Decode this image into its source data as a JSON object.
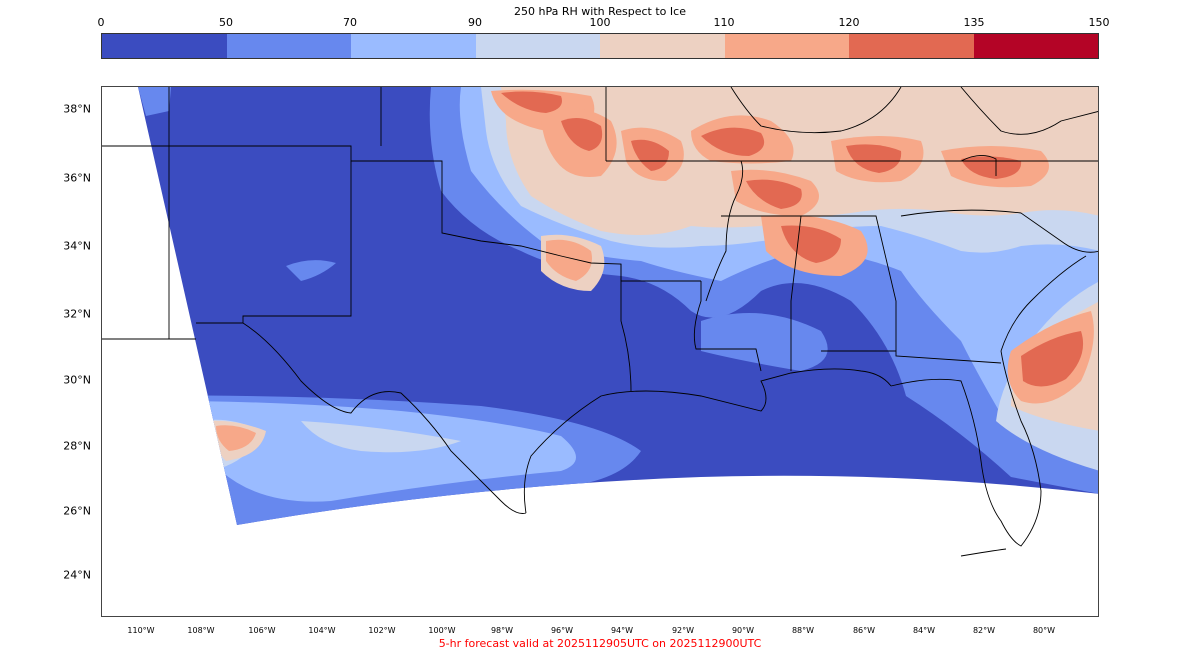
{
  "title": "250 hPa RH with Respect to Ice",
  "colorbar": {
    "ticks": [
      "0",
      "50",
      "70",
      "90",
      "100",
      "110",
      "120",
      "135",
      "150"
    ],
    "colors": [
      "#3b4cc0",
      "#6788ee",
      "#9abbff",
      "#c9d7f0",
      "#edd1c2",
      "#f7a889",
      "#e26952",
      "#b40426"
    ]
  },
  "lat_labels": [
    "38°N",
    "36°N",
    "34°N",
    "32°N",
    "30°N",
    "28°N",
    "26°N",
    "24°N"
  ],
  "lon_labels": [
    "110°W",
    "108°W",
    "106°W",
    "104°W",
    "102°W",
    "100°W",
    "98°W",
    "96°W",
    "94°W",
    "92°W",
    "90°W",
    "88°W",
    "86°W",
    "84°W",
    "82°W",
    "80°W"
  ],
  "footer": {
    "text": "5-hr forecast valid at 2025112905UTC on 2025112900UTC",
    "color": "#ff0000"
  }
}
